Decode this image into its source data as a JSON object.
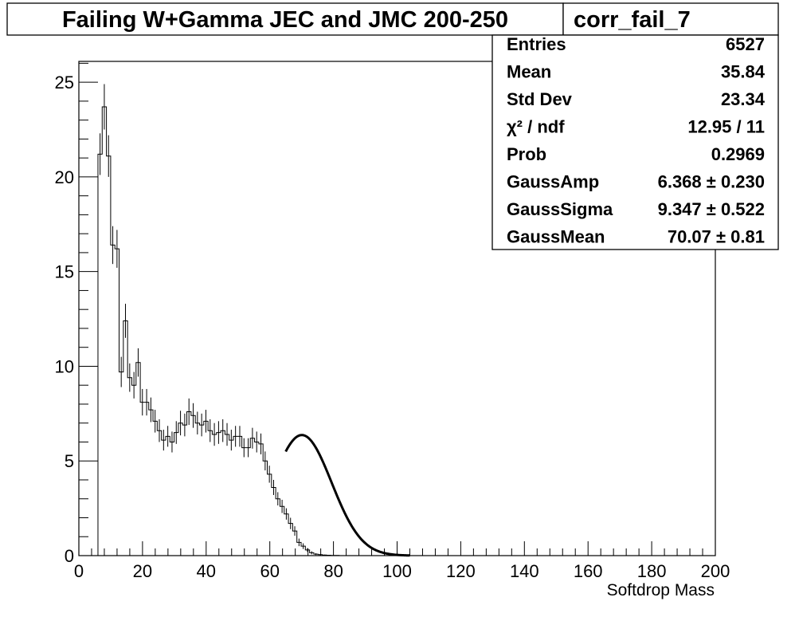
{
  "title": "Failing W+Gamma JEC and JMC 200-250",
  "stats_box": {
    "name": "corr_fail_7",
    "rows": [
      {
        "label": "Entries",
        "value": "6527"
      },
      {
        "label": "Mean",
        "value": "35.84"
      },
      {
        "label": "Std Dev",
        "value": "23.34"
      },
      {
        "label": "χ² / ndf",
        "value": "12.95 / 11"
      },
      {
        "label": "Prob",
        "value": "0.2969"
      },
      {
        "label": "GaussAmp",
        "value": "6.368 ± 0.230"
      },
      {
        "label": "GaussSigma",
        "value": "9.347 ± 0.522"
      },
      {
        "label": "GaussMean",
        "value": "70.07 ± 0.81"
      }
    ]
  },
  "chart_data": {
    "type": "histogram",
    "title": "Failing W+Gamma JEC and JMC 200-250",
    "xlabel": "Softdrop Mass",
    "ylabel": "",
    "xlim": [
      0,
      200
    ],
    "ylim": [
      0,
      26.1
    ],
    "x_ticks": [
      0,
      20,
      40,
      60,
      80,
      100,
      120,
      140,
      160,
      180,
      200
    ],
    "y_ticks": [
      0,
      5,
      10,
      15,
      20,
      25
    ],
    "grid": false,
    "bin_width": 1.33,
    "bin_start": 6,
    "values": [
      21.2,
      23.7,
      21.1,
      16.4,
      16.2,
      9.7,
      12.4,
      9.4,
      9.0,
      10.2,
      8.1,
      8.1,
      7.7,
      7.1,
      6.6,
      6.1,
      6.3,
      6.0,
      6.5,
      7.0,
      6.9,
      7.6,
      7.4,
      7.0,
      6.9,
      7.1,
      6.6,
      6.4,
      6.5,
      6.6,
      6.4,
      6.1,
      6.3,
      6.3,
      5.7,
      5.7,
      6.2,
      6.0,
      5.9,
      5.0,
      4.3,
      3.6,
      3.0,
      2.6,
      2.2,
      1.7,
      1.3,
      0.7,
      0.5,
      0.3,
      0.15,
      0.08,
      0.05,
      0.03,
      0.02,
      0.01,
      0.01,
      0.0
    ],
    "errors": [
      1.1,
      1.2,
      1.1,
      1.0,
      1.0,
      0.8,
      0.9,
      0.75,
      0.7,
      0.75,
      0.7,
      0.7,
      0.65,
      0.6,
      0.6,
      0.55,
      0.55,
      0.55,
      0.6,
      0.65,
      0.6,
      0.7,
      0.65,
      0.6,
      0.6,
      0.6,
      0.6,
      0.6,
      0.6,
      0.6,
      0.6,
      0.55,
      0.55,
      0.55,
      0.5,
      0.5,
      0.55,
      0.55,
      0.55,
      0.5,
      0.45,
      0.4,
      0.35,
      0.35,
      0.3,
      0.3,
      0.25,
      0.2,
      0.15,
      0.1,
      0.08,
      0.05,
      0.03,
      0.02,
      0.01,
      0.01,
      0.01,
      0.0
    ],
    "fit": {
      "type": "gauss",
      "amp": 6.368,
      "mean": 70.07,
      "sigma": 9.347,
      "x_range": [
        65,
        104
      ]
    }
  }
}
